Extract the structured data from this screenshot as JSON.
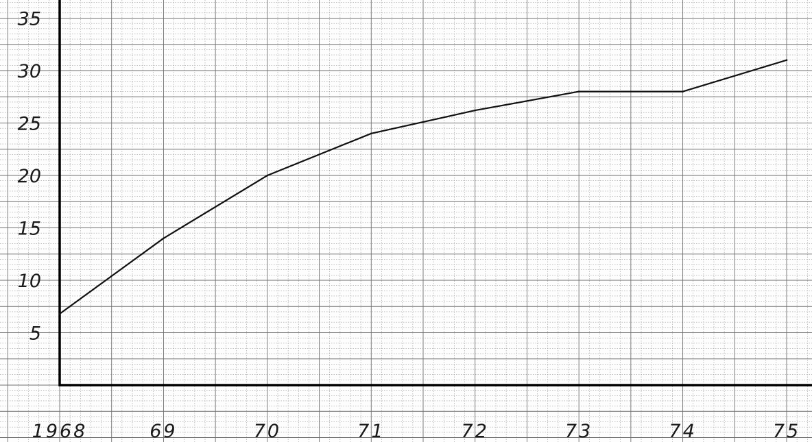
{
  "chart_data": {
    "type": "line",
    "title": "",
    "xlabel": "",
    "ylabel": "",
    "x": [
      1968,
      1969,
      1970,
      1971,
      1972,
      1973,
      1974,
      1975
    ],
    "x_tick_labels": [
      "1968",
      "69",
      "70",
      "71",
      "72",
      "73",
      "74",
      "75"
    ],
    "y_ticks": [
      5,
      10,
      15,
      20,
      25,
      30,
      35
    ],
    "y_tick_labels": [
      "5",
      "10",
      "15",
      "20",
      "25",
      "30",
      "35"
    ],
    "ylim": [
      0,
      36.5
    ],
    "grid": true,
    "series": [
      {
        "values": [
          6.8,
          14.0,
          20.0,
          24.0,
          26.2,
          28.0,
          28.0,
          31.0
        ]
      }
    ],
    "colors": {
      "line": "#111111",
      "axis": "#000000",
      "grid_major": "#6f6f6f",
      "grid_minor": "#9a9a9a",
      "paper": "#fdfdfd"
    }
  }
}
